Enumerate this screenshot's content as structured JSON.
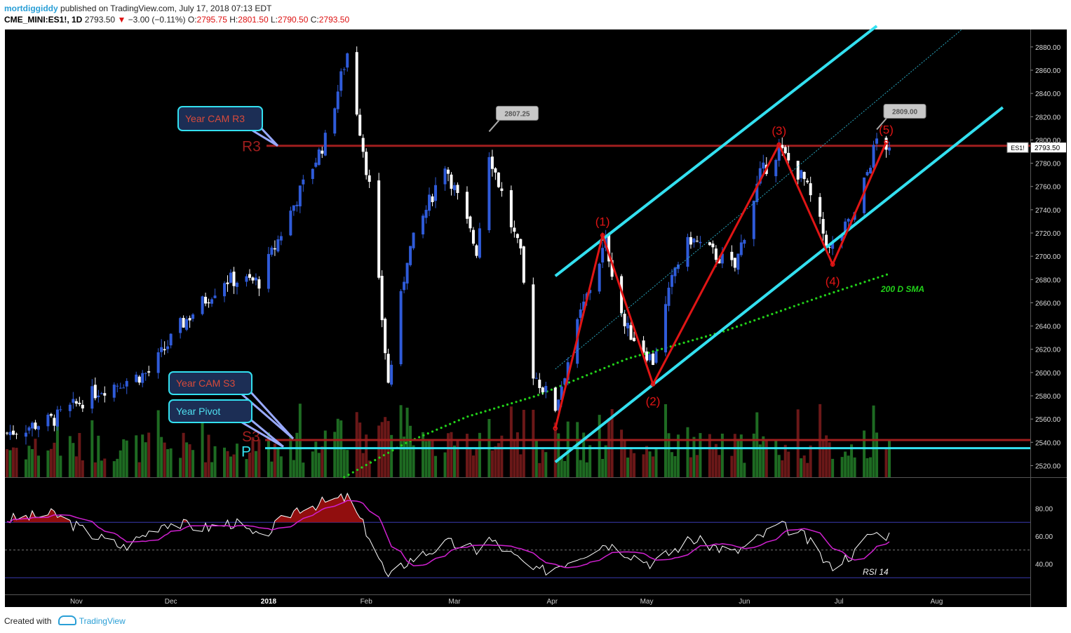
{
  "header": {
    "user": "mortdiggiddy",
    "published": "published on TradingView.com, July 17, 2018 07:13 EDT",
    "symbol": "CME_MINI:ES1!, 1D",
    "last": "2793.50",
    "change": "−3.00 (−0.11%)",
    "open_label": "O:",
    "open": "2795.75",
    "high_label": "H:",
    "high": "2801.50",
    "low_label": "L:",
    "low": "2790.50",
    "close_label": "C:",
    "close": "2793.50"
  },
  "footer": {
    "created_with": "Created with",
    "brand": "TradingView"
  },
  "colors": {
    "background": "#000000",
    "bull": "#2f5bd9",
    "bear": "#ffffff",
    "vol_up": "#1e6b22",
    "vol_down": "#6b1818",
    "level": "#a01e1e",
    "channel": "#33e0f0",
    "wave": "#e01515",
    "sma": "#22d11a",
    "rsi": "#ffffff",
    "rsi_ma": "#d020d0"
  },
  "chart_data": [
    {
      "type": "candlestick",
      "name": "ES1!",
      "ylim": [
        2510,
        2895
      ],
      "yticks": [
        "2880.00",
        "2860.00",
        "2840.00",
        "2820.00",
        "2800.00",
        "2780.00",
        "2760.00",
        "2740.00",
        "2720.00",
        "2700.00",
        "2680.00",
        "2660.00",
        "2640.00",
        "2620.00",
        "2600.00",
        "2580.00",
        "2560.00",
        "2540.00",
        "2520.00"
      ],
      "xticks": [
        "Nov",
        "Dec",
        "2018",
        "Feb",
        "Mar",
        "Apr",
        "May",
        "Jun",
        "Jul",
        "Aug"
      ],
      "last_price_label": "ES1!",
      "last_price": "2793.50",
      "anchors": [
        {
          "date": "2017-10-10",
          "price": 2548
        },
        {
          "date": "2017-10-25",
          "price": 2560
        },
        {
          "date": "2017-11-08",
          "price": 2585
        },
        {
          "date": "2017-11-24",
          "price": 2600
        },
        {
          "date": "2017-12-04",
          "price": 2640
        },
        {
          "date": "2017-12-18",
          "price": 2680
        },
        {
          "date": "2017-12-29",
          "price": 2678
        },
        {
          "date": "2018-01-10",
          "price": 2750
        },
        {
          "date": "2018-01-19",
          "price": 2800
        },
        {
          "date": "2018-01-26",
          "price": 2875
        },
        {
          "date": "2018-02-02",
          "price": 2760
        },
        {
          "date": "2018-02-08",
          "price": 2590
        },
        {
          "date": "2018-02-14",
          "price": 2700
        },
        {
          "date": "2018-02-26",
          "price": 2780
        },
        {
          "date": "2018-03-08",
          "price": 2705
        },
        {
          "date": "2018-03-12",
          "price": 2790
        },
        {
          "date": "2018-03-22",
          "price": 2700
        },
        {
          "date": "2018-03-26",
          "price": 2600
        },
        {
          "date": "2018-04-02",
          "price": 2570
        },
        {
          "date": "2018-04-10",
          "price": 2650
        },
        {
          "date": "2018-04-18",
          "price": 2712
        },
        {
          "date": "2018-04-24",
          "price": 2640
        },
        {
          "date": "2018-05-03",
          "price": 2610
        },
        {
          "date": "2018-05-10",
          "price": 2690
        },
        {
          "date": "2018-05-15",
          "price": 2715
        },
        {
          "date": "2018-05-29",
          "price": 2690
        },
        {
          "date": "2018-06-06",
          "price": 2770
        },
        {
          "date": "2018-06-12",
          "price": 2792
        },
        {
          "date": "2018-06-20",
          "price": 2765
        },
        {
          "date": "2018-06-28",
          "price": 2705
        },
        {
          "date": "2018-07-06",
          "price": 2735
        },
        {
          "date": "2018-07-13",
          "price": 2800
        },
        {
          "date": "2018-07-17",
          "price": 2793.5
        }
      ],
      "sma200": {
        "label": "200 D SMA",
        "points": [
          {
            "date": "2018-01-25",
            "price": 2510
          },
          {
            "date": "2018-02-14",
            "price": 2540
          },
          {
            "date": "2018-03-05",
            "price": 2562
          },
          {
            "date": "2018-03-27",
            "price": 2580
          },
          {
            "date": "2018-04-25",
            "price": 2612
          },
          {
            "date": "2018-05-25",
            "price": 2635
          },
          {
            "date": "2018-06-25",
            "price": 2665
          },
          {
            "date": "2018-07-17",
            "price": 2685
          }
        ]
      },
      "levels": [
        {
          "label": "R3",
          "price": 2795,
          "callout": "Year CAM R3"
        },
        {
          "label": "S3",
          "price": 2542,
          "callout": "Year CAM S3"
        },
        {
          "label": "P",
          "price": 2535,
          "callout": "Year Pivot"
        }
      ],
      "price_tags": [
        {
          "date": "2018-03-12",
          "price": 2807.25,
          "text": "2807.25"
        },
        {
          "date": "2018-07-13",
          "price": 2809,
          "text": "2809.00"
        }
      ],
      "elliott_waves": [
        {
          "date": "2018-04-02",
          "price": 2552,
          "label": ""
        },
        {
          "date": "2018-04-17",
          "price": 2718,
          "label": "(1)"
        },
        {
          "date": "2018-05-03",
          "price": 2590,
          "label": "(2)"
        },
        {
          "date": "2018-06-12",
          "price": 2796,
          "label": "(3)"
        },
        {
          "date": "2018-06-29",
          "price": 2693,
          "label": "(4)"
        },
        {
          "date": "2018-07-16",
          "price": 2798,
          "label": "(5)"
        }
      ],
      "channel": {
        "upper": [
          {
            "date": "2018-04-02",
            "price": 2683
          },
          {
            "date": "2018-07-13",
            "price": 2898
          }
        ],
        "lower": [
          {
            "date": "2018-04-02",
            "price": 2523
          },
          {
            "date": "2018-08-22",
            "price": 2828
          }
        ],
        "mid": [
          {
            "date": "2018-04-02",
            "price": 2603
          },
          {
            "date": "2018-08-09",
            "price": 2895
          }
        ]
      }
    },
    {
      "type": "line",
      "name": "RSI 14",
      "label": "RSI 14",
      "ylim": [
        18,
        102
      ],
      "yticks": [
        "80.00",
        "60.00",
        "40.00"
      ],
      "upper_band": 70,
      "mid_band": 50,
      "lower_band": 30,
      "anchors": [
        {
          "date": "2017-10-10",
          "value": 72
        },
        {
          "date": "2017-10-25",
          "value": 76
        },
        {
          "date": "2017-11-05",
          "value": 62
        },
        {
          "date": "2017-11-16",
          "value": 52
        },
        {
          "date": "2017-11-29",
          "value": 70
        },
        {
          "date": "2017-12-12",
          "value": 66
        },
        {
          "date": "2017-12-21",
          "value": 70
        },
        {
          "date": "2017-12-29",
          "value": 58
        },
        {
          "date": "2018-01-10",
          "value": 80
        },
        {
          "date": "2018-01-26",
          "value": 88
        },
        {
          "date": "2018-02-02",
          "value": 60
        },
        {
          "date": "2018-02-08",
          "value": 29
        },
        {
          "date": "2018-02-14",
          "value": 42
        },
        {
          "date": "2018-02-27",
          "value": 55
        },
        {
          "date": "2018-03-08",
          "value": 50
        },
        {
          "date": "2018-03-12",
          "value": 58
        },
        {
          "date": "2018-03-27",
          "value": 34
        },
        {
          "date": "2018-04-02",
          "value": 38
        },
        {
          "date": "2018-04-18",
          "value": 55
        },
        {
          "date": "2018-05-03",
          "value": 40
        },
        {
          "date": "2018-05-15",
          "value": 58
        },
        {
          "date": "2018-05-29",
          "value": 48
        },
        {
          "date": "2018-06-12",
          "value": 68
        },
        {
          "date": "2018-06-20",
          "value": 60
        },
        {
          "date": "2018-06-28",
          "value": 38
        },
        {
          "date": "2018-07-06",
          "value": 48
        },
        {
          "date": "2018-07-11",
          "value": 62
        },
        {
          "date": "2018-07-17",
          "value": 61
        }
      ]
    }
  ]
}
